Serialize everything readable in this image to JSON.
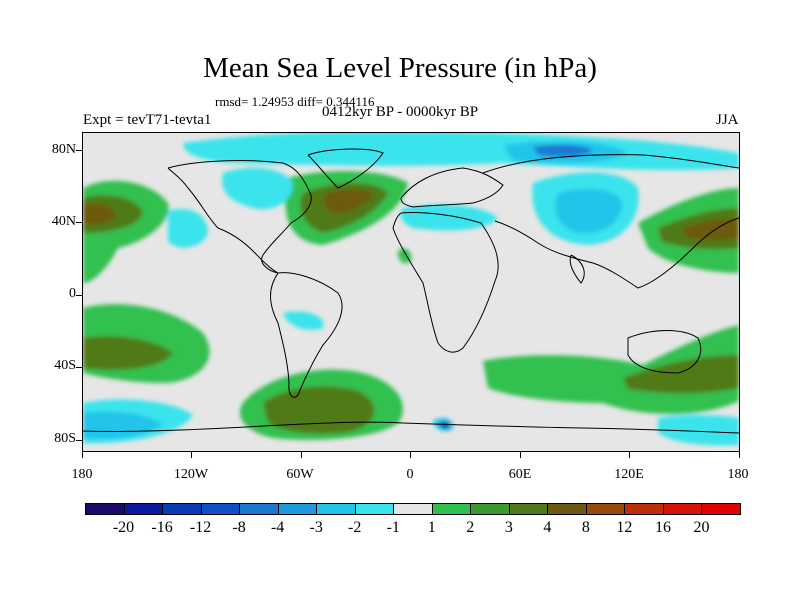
{
  "title": "Mean Sea Level Pressure (in hPa)",
  "stats": "rmsd= 1.24953 diff= 0.344116",
  "period": "0412kyr BP - 0000kyr BP",
  "experiment": "Expt = tevT71-tevta1",
  "season": "JJA",
  "axes": {
    "y_labels": [
      "80N",
      "40N",
      "0",
      "40S",
      "80S"
    ],
    "x_labels": [
      "180",
      "120W",
      "60W",
      "0",
      "60E",
      "120E",
      "180"
    ]
  },
  "colorbar": {
    "labels": [
      "-20",
      "-16",
      "-12",
      "-8",
      "-4",
      "-3",
      "-2",
      "-1",
      "1",
      "2",
      "3",
      "4",
      "8",
      "12",
      "16",
      "20"
    ],
    "colors": [
      "#1a0a6e",
      "#0a1a9a",
      "#0a3ab4",
      "#1050c0",
      "#1a78d2",
      "#1e9ae0",
      "#22c4ea",
      "#3ae4ec",
      "#e6e6e6",
      "#30c050",
      "#3a9a30",
      "#507a18",
      "#6c5a10",
      "#9a4a0a",
      "#bc3008",
      "#d41408",
      "#e00000"
    ]
  }
}
